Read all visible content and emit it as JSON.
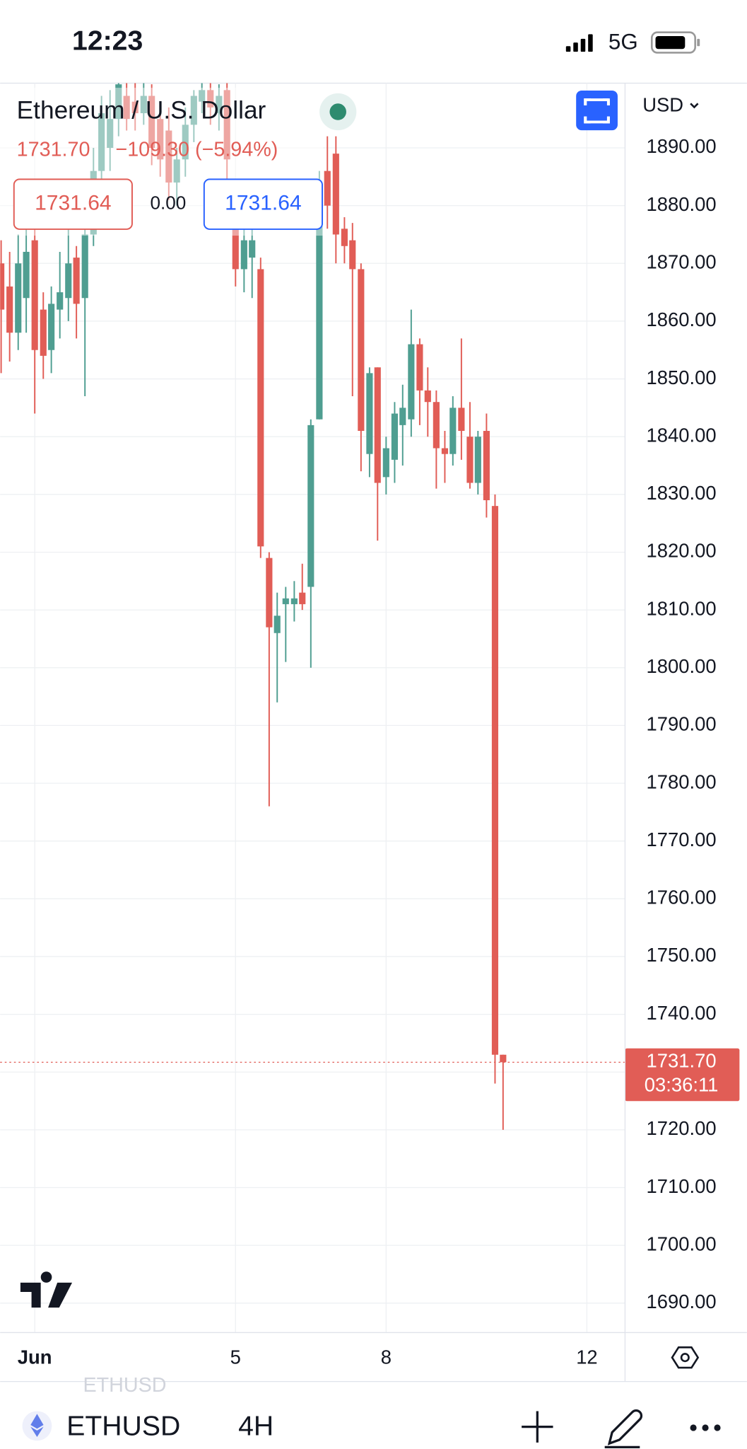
{
  "status_bar": {
    "time": "12:23",
    "network": "5G"
  },
  "chart_data": {
    "type": "candlestick",
    "title": "Ethereum / U.S. Dollar",
    "change_label": "−109.30 (−5.94%)",
    "currency": "USD",
    "countdown": "03:36:11",
    "last_price": {
      "value": 1731.7,
      "label": "1731.70"
    },
    "up_color": "#4f9e91",
    "down_color": "#e15d56",
    "grid": true,
    "x": [
      0.33,
      0.5,
      0.67,
      0.83,
      1,
      1.17,
      1.33,
      1.5,
      1.67,
      1.83,
      2,
      2.17,
      2.33,
      2.5,
      2.67,
      2.83,
      3,
      3.17,
      3.33,
      3.5,
      3.67,
      3.83,
      4,
      4.17,
      4.33,
      4.5,
      4.67,
      4.83,
      5,
      5.17,
      5.33,
      5.5,
      5.67,
      5.83,
      6,
      6.17,
      6.33,
      6.5,
      6.67,
      6.83,
      7,
      7.17,
      7.33,
      7.5,
      7.67,
      7.83,
      8,
      8.17,
      8.33,
      8.5,
      8.67,
      8.83,
      9,
      9.17,
      9.33,
      9.5,
      9.67,
      9.83,
      10,
      10.17,
      10.33
    ],
    "open": [
      1870,
      1866,
      1858,
      1864,
      1874,
      1862,
      1855,
      1862,
      1864,
      1871,
      1864,
      1875,
      1886,
      1890,
      1895,
      1899,
      1898,
      1896,
      1899,
      1895,
      1893,
      1884,
      1888,
      1894,
      1898,
      1900,
      1896,
      1900,
      1878,
      1869,
      1871,
      1869,
      1819,
      1806,
      1811,
      1811,
      1813,
      1814,
      1843,
      1886,
      1889,
      1876,
      1874,
      1869,
      1837,
      1852,
      1833,
      1836,
      1842,
      1843,
      1856,
      1848,
      1846,
      1838,
      1837,
      1845,
      1840,
      1832,
      1841,
      1828,
      1733
    ],
    "high": [
      1874,
      1872,
      1875,
      1876,
      1876,
      1865,
      1866,
      1872,
      1878,
      1873,
      1877,
      1890,
      1899,
      1900,
      1902,
      1902,
      1902,
      1902,
      1901,
      1898,
      1897,
      1890,
      1897,
      1900,
      1902,
      1902,
      1901,
      1902,
      1882,
      1876,
      1876,
      1871,
      1820,
      1813,
      1814,
      1815,
      1818,
      1843,
      1886,
      1892,
      1892,
      1878,
      1877,
      1870,
      1852,
      1852,
      1840,
      1846,
      1849,
      1862,
      1857,
      1852,
      1848,
      1841,
      1847,
      1857,
      1846,
      1841,
      1844,
      1830,
      1733
    ],
    "low": [
      1851,
      1853,
      1855,
      1858,
      1844,
      1850,
      1851,
      1857,
      1860,
      1857,
      1847,
      1873,
      1884,
      1886,
      1892,
      1893,
      1893,
      1894,
      1887,
      1885,
      1881,
      1880,
      1885,
      1891,
      1896,
      1894,
      1893,
      1882,
      1866,
      1865,
      1864,
      1819,
      1776,
      1794,
      1801,
      1808,
      1810,
      1800,
      1843,
      1876,
      1870,
      1870,
      1847,
      1834,
      1833,
      1822,
      1830,
      1832,
      1835,
      1840,
      1842,
      1840,
      1831,
      1832,
      1835,
      1836,
      1831,
      1830,
      1826,
      1728,
      1720
    ],
    "close": [
      1862,
      1858,
      1870,
      1872,
      1855,
      1854,
      1863,
      1865,
      1870,
      1863,
      1875,
      1886,
      1896,
      1895,
      1901,
      1895,
      1896,
      1899,
      1890,
      1888,
      1884,
      1888,
      1894,
      1899,
      1900,
      1897,
      1899,
      1888,
      1869,
      1874,
      1874,
      1821,
      1807,
      1809,
      1812,
      1812,
      1811,
      1842,
      1883,
      1880,
      1875,
      1873,
      1869,
      1841,
      1851,
      1832,
      1838,
      1844,
      1845,
      1856,
      1848,
      1846,
      1838,
      1837,
      1845,
      1841,
      1832,
      1840,
      1829,
      1733,
      1731.7
    ],
    "xlim": [
      0.31,
      12.76
    ],
    "xticks": [
      {
        "value": 1,
        "label": "Jun"
      },
      5,
      8,
      12
    ],
    "ylim": [
      1684.9,
      1901.2
    ],
    "yticks": [
      {
        "value": 1690,
        "label": "1690.00"
      },
      {
        "value": 1700,
        "label": "1700.00"
      },
      {
        "value": 1710,
        "label": "1710.00"
      },
      {
        "value": 1720,
        "label": "1720.00"
      },
      {
        "value": 1730,
        "label": "1730.00"
      },
      {
        "value": 1740,
        "label": "1740.00"
      },
      {
        "value": 1750,
        "label": "1750.00"
      },
      {
        "value": 1760,
        "label": "1760.00"
      },
      {
        "value": 1770,
        "label": "1770.00"
      },
      {
        "value": 1780,
        "label": "1780.00"
      },
      {
        "value": 1790,
        "label": "1790.00"
      },
      {
        "value": 1800,
        "label": "1800.00"
      },
      {
        "value": 1810,
        "label": "1810.00"
      },
      {
        "value": 1820,
        "label": "1820.00"
      },
      {
        "value": 1830,
        "label": "1830.00"
      },
      {
        "value": 1840,
        "label": "1840.00"
      },
      {
        "value": 1850,
        "label": "1850.00"
      },
      {
        "value": 1860,
        "label": "1860.00"
      },
      {
        "value": 1870,
        "label": "1870.00"
      },
      {
        "value": 1880,
        "label": "1880.00"
      },
      {
        "value": 1890,
        "label": "1890.00"
      }
    ]
  },
  "trade_panel": {
    "sell": "1731.64",
    "spread": "0.00",
    "buy": "1731.64"
  },
  "toolbar": {
    "watermark": "ETHUSD",
    "symbol": "ETHUSD",
    "interval": "4H"
  }
}
